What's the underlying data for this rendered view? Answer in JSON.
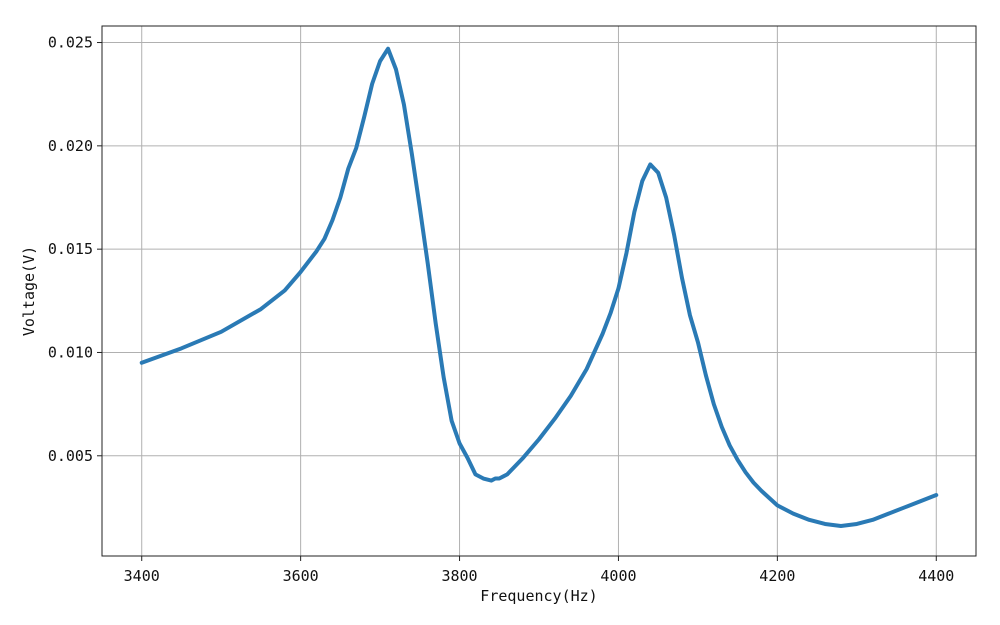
{
  "chart_data": {
    "type": "line",
    "title": "",
    "xlabel": "Frequency(Hz)",
    "ylabel": "Voltage(V)",
    "xlim": [
      3350,
      4450
    ],
    "ylim": [
      0.00015,
      0.0258
    ],
    "xticks": [
      3400,
      3600,
      3800,
      4000,
      4200,
      4400
    ],
    "xtick_labels": [
      "3400",
      "3600",
      "3800",
      "4000",
      "4200",
      "4400"
    ],
    "yticks": [
      0.005,
      0.01,
      0.015,
      0.02,
      0.025
    ],
    "ytick_labels": [
      "0.005",
      "0.010",
      "0.015",
      "0.020",
      "0.025"
    ],
    "grid": true,
    "series": [
      {
        "color": "#2a7ab5",
        "x": [
          3400,
          3450,
          3500,
          3550,
          3580,
          3600,
          3620,
          3630,
          3640,
          3650,
          3660,
          3670,
          3680,
          3690,
          3700,
          3710,
          3720,
          3730,
          3740,
          3750,
          3760,
          3770,
          3780,
          3790,
          3800,
          3810,
          3820,
          3830,
          3840,
          3845,
          3850,
          3855,
          3860,
          3870,
          3880,
          3900,
          3920,
          3940,
          3960,
          3980,
          3990,
          4000,
          4010,
          4015,
          4020,
          4030,
          4040,
          4050,
          4060,
          4070,
          4080,
          4090,
          4100,
          4110,
          4120,
          4130,
          4140,
          4150,
          4160,
          4170,
          4180,
          4200,
          4220,
          4240,
          4260,
          4280,
          4300,
          4320,
          4340,
          4360,
          4380,
          4400
        ],
        "y": [
          0.0095,
          0.0102,
          0.011,
          0.0121,
          0.013,
          0.0139,
          0.0149,
          0.0155,
          0.0164,
          0.0175,
          0.0189,
          0.0199,
          0.0214,
          0.023,
          0.0241,
          0.0247,
          0.0237,
          0.022,
          0.0196,
          0.017,
          0.0143,
          0.0114,
          0.0088,
          0.0067,
          0.0056,
          0.0049,
          0.0041,
          0.0039,
          0.0038,
          0.0039,
          0.0039,
          0.004,
          0.0041,
          0.0045,
          0.0049,
          0.0058,
          0.0068,
          0.0079,
          0.0092,
          0.0109,
          0.0119,
          0.0131,
          0.0148,
          0.0158,
          0.0168,
          0.0183,
          0.0191,
          0.0187,
          0.0175,
          0.0157,
          0.0136,
          0.0118,
          0.0105,
          0.0089,
          0.0075,
          0.0064,
          0.0055,
          0.0048,
          0.0042,
          0.0037,
          0.0033,
          0.0026,
          0.0022,
          0.0019,
          0.0017,
          0.0016,
          0.0017,
          0.0019,
          0.0022,
          0.0025,
          0.0028,
          0.0031
        ]
      }
    ]
  }
}
